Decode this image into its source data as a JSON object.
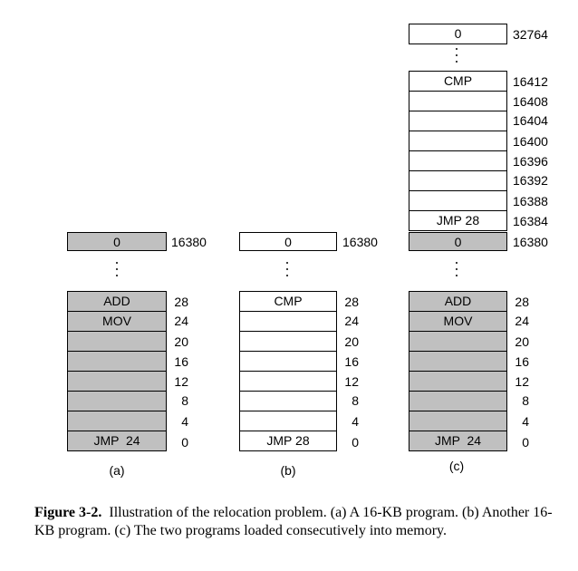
{
  "columns": [
    {
      "id": "a",
      "label": "(a)",
      "top": {
        "text": "0",
        "addr": "16380"
      },
      "cells": [
        {
          "text": "ADD",
          "addr": "28"
        },
        {
          "text": "MOV",
          "addr": "24"
        },
        {
          "text": "",
          "addr": "20"
        },
        {
          "text": "",
          "addr": "16"
        },
        {
          "text": "",
          "addr": "12"
        },
        {
          "text": "",
          "addr": "8"
        },
        {
          "text": "",
          "addr": "4"
        },
        {
          "text": "JMP  24",
          "addr": "0"
        }
      ]
    },
    {
      "id": "b",
      "label": "(b)",
      "top": {
        "text": "0",
        "addr": "16380"
      },
      "cells": [
        {
          "text": "CMP",
          "addr": "28"
        },
        {
          "text": "",
          "addr": "24"
        },
        {
          "text": "",
          "addr": "20"
        },
        {
          "text": "",
          "addr": "16"
        },
        {
          "text": "",
          "addr": "12"
        },
        {
          "text": "",
          "addr": "8"
        },
        {
          "text": "",
          "addr": "4"
        },
        {
          "text": "JMP 28",
          "addr": "0"
        }
      ]
    },
    {
      "id": "c",
      "label": "(c)",
      "top": {
        "text": "0",
        "addr": "32764"
      },
      "upper_cells": [
        {
          "text": "CMP",
          "addr": "16412"
        },
        {
          "text": "",
          "addr": "16408"
        },
        {
          "text": "",
          "addr": "16404"
        },
        {
          "text": "",
          "addr": "16400"
        },
        {
          "text": "",
          "addr": "16396"
        },
        {
          "text": "",
          "addr": "16392"
        },
        {
          "text": "",
          "addr": "16388"
        },
        {
          "text": "JMP 28",
          "addr": "16384"
        }
      ],
      "mid": {
        "text": "0",
        "addr": "16380"
      },
      "cells": [
        {
          "text": "ADD",
          "addr": "28"
        },
        {
          "text": "MOV",
          "addr": "24"
        },
        {
          "text": "",
          "addr": "20"
        },
        {
          "text": "",
          "addr": "16"
        },
        {
          "text": "",
          "addr": "12"
        },
        {
          "text": "",
          "addr": "8"
        },
        {
          "text": "",
          "addr": "4"
        },
        {
          "text": "JMP  24",
          "addr": "0"
        }
      ]
    }
  ],
  "caption": {
    "figure": "Figure 3-2.",
    "text": "Illustration of the relocation problem.  (a) A 16-KB program. (b) Another 16-KB program. (c) The two programs loaded consecutively into memory."
  },
  "colors": {
    "filled": "#c0c0c0",
    "empty": "#ffffff",
    "border": "#000000"
  }
}
